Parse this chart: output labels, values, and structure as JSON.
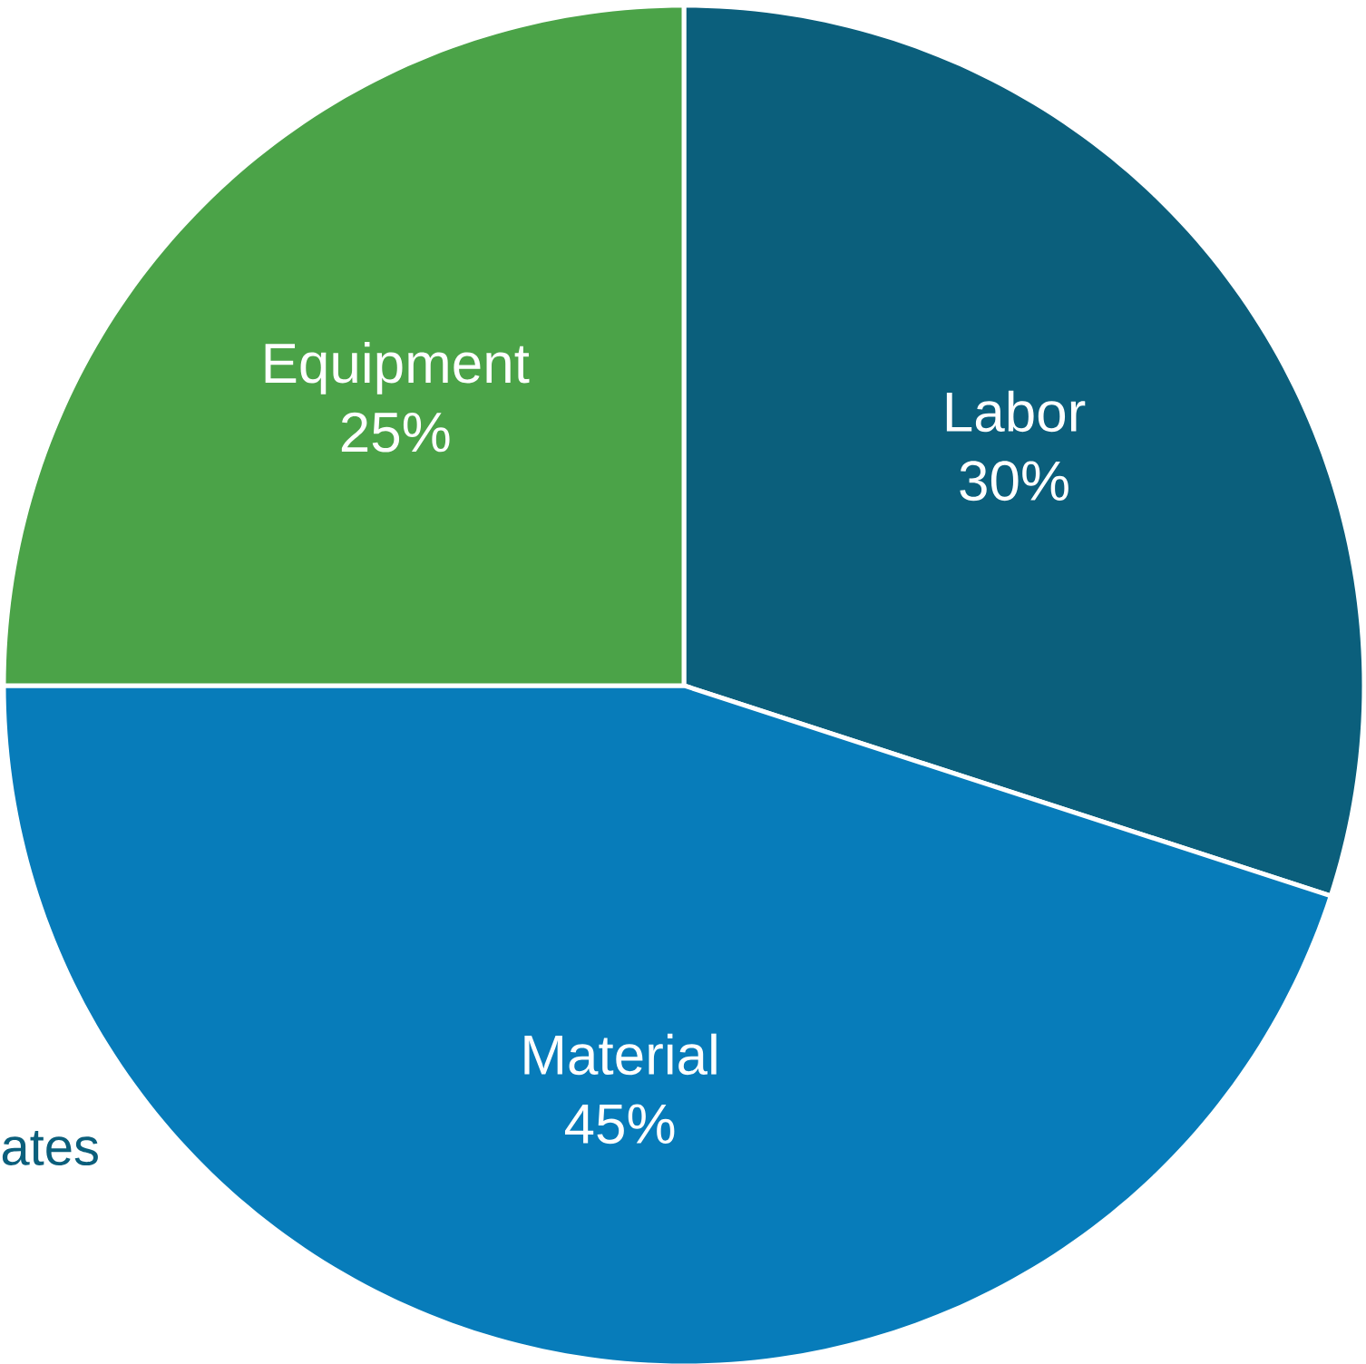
{
  "chart_data": {
    "type": "pie",
    "categories": [
      "Labor",
      "Material",
      "Equipment"
    ],
    "values": [
      30,
      45,
      25
    ],
    "colors": [
      "#0b5f7c",
      "#077cba",
      "#4ba348"
    ],
    "value_labels": [
      "30%",
      "45%",
      "25%"
    ],
    "annotations": [
      "ates"
    ]
  }
}
